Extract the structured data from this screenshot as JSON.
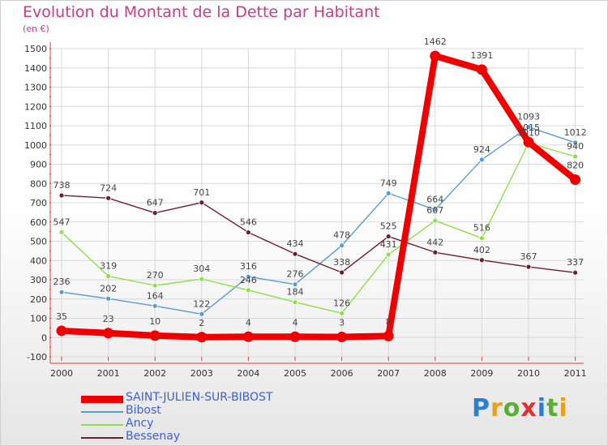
{
  "title": "Evolution du Montant de la Dette par Habitant",
  "unit_label": "(en €)",
  "logo": {
    "text": "Proxiti",
    "letters": [
      "P",
      "r",
      "o",
      "x",
      "i",
      "t",
      "i"
    ],
    "colors": [
      "#2a7fd4",
      "#e8a020",
      "#58b030",
      "#e03030",
      "#2a7fd4",
      "#58b030",
      "#e8a020"
    ]
  },
  "chart_data": {
    "type": "line",
    "title": "Evolution du Montant de la Dette par Habitant",
    "ylabel": "(en €)",
    "xlabel": "",
    "x": [
      "2000",
      "2001",
      "2002",
      "2003",
      "2004",
      "2005",
      "2006",
      "2007",
      "2008",
      "2009",
      "2010",
      "2011"
    ],
    "ylim": [
      -100,
      1500
    ],
    "yticks": [
      -100,
      0,
      100,
      200,
      300,
      400,
      500,
      600,
      700,
      800,
      900,
      1000,
      1100,
      1200,
      1300,
      1400,
      1500
    ],
    "grid": true,
    "legend_position": "bottom-left",
    "series": [
      {
        "name": "SAINT-JULIEN-SUR-BIBOST",
        "color": "#ee0000",
        "values": [
          35,
          23,
          10,
          2,
          4,
          4,
          3,
          8,
          1462,
          1391,
          1015,
          820
        ],
        "labels": [
          "35",
          "23",
          "10",
          "2",
          "4",
          "4",
          "3",
          "8",
          "1462",
          "1391",
          "1015",
          "820"
        ]
      },
      {
        "name": "Bibost",
        "color": "#5b9bd5",
        "values": [
          236,
          202,
          164,
          122,
          316,
          276,
          478,
          749,
          664,
          924,
          1093,
          1012
        ],
        "labels": [
          "236",
          "202",
          "164",
          "122",
          "316",
          "276",
          "478",
          "749",
          "664",
          "924",
          "1093",
          "1012"
        ]
      },
      {
        "name": "Ancy",
        "color": "#8ee04a",
        "values": [
          547,
          319,
          270,
          304,
          246,
          184,
          126,
          431,
          607,
          516,
          1010,
          940
        ],
        "labels": [
          "547",
          "319",
          "270",
          "304",
          "246",
          "184",
          "126",
          "431",
          "607",
          "516",
          "1010",
          "940"
        ]
      },
      {
        "name": "Bessenay",
        "color": "#6b1f2a",
        "values": [
          738,
          724,
          647,
          701,
          546,
          434,
          338,
          525,
          442,
          402,
          367,
          337
        ],
        "labels": [
          "738",
          "724",
          "647",
          "701",
          "546",
          "434",
          "338",
          "525",
          "442",
          "402",
          "367",
          "337"
        ]
      }
    ]
  }
}
